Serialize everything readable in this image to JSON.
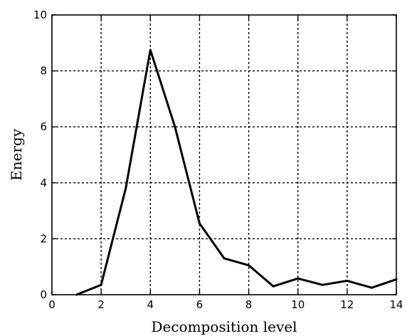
{
  "chart_data": {
    "type": "line",
    "title": "",
    "xlabel": "Decomposition level",
    "ylabel": "Energy",
    "xlim": [
      0,
      14
    ],
    "ylim": [
      0,
      10
    ],
    "xticks": [
      0,
      2,
      4,
      6,
      8,
      10,
      12,
      14
    ],
    "yticks": [
      0,
      2,
      4,
      6,
      8,
      10
    ],
    "grid": true,
    "legend": "none",
    "series": [
      {
        "color": "#000000",
        "x": [
          1,
          2,
          3,
          4,
          5,
          6,
          7,
          8,
          9,
          10,
          11,
          12,
          13,
          14
        ],
        "y": [
          0.0,
          0.35,
          3.8,
          8.75,
          6.0,
          2.55,
          1.3,
          1.05,
          0.3,
          0.58,
          0.35,
          0.5,
          0.25,
          0.55
        ]
      }
    ]
  }
}
